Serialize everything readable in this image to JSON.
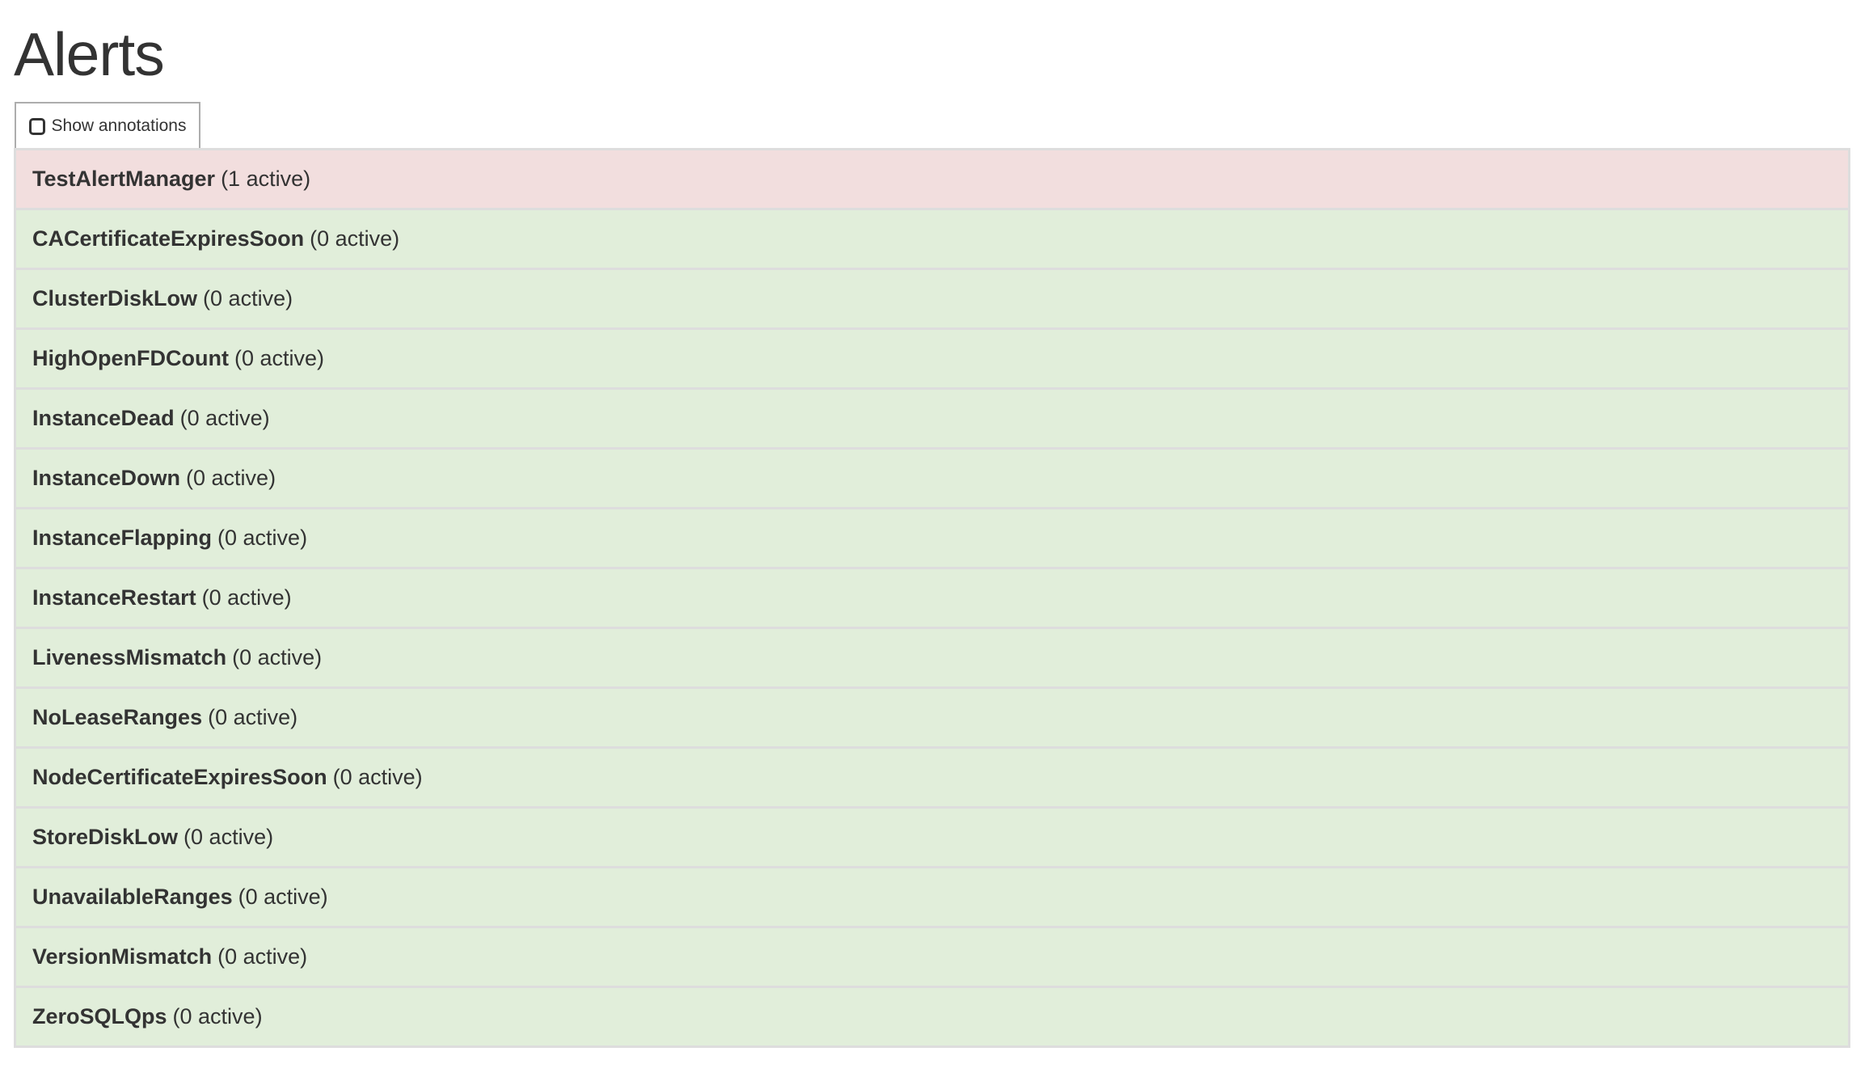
{
  "page": {
    "title": "Alerts"
  },
  "controls": {
    "show_annotations_label": "Show annotations",
    "show_annotations_checked": false
  },
  "colors": {
    "firing": "#f2dede",
    "inactive": "#e1eeda",
    "border": "#dddddd",
    "text": "#333333"
  },
  "alerts": [
    {
      "name": "TestAlertManager",
      "count": "(1 active)",
      "state": "firing"
    },
    {
      "name": "CACertificateExpiresSoon",
      "count": "(0 active)",
      "state": "inactive"
    },
    {
      "name": "ClusterDiskLow",
      "count": "(0 active)",
      "state": "inactive"
    },
    {
      "name": "HighOpenFDCount",
      "count": "(0 active)",
      "state": "inactive"
    },
    {
      "name": "InstanceDead",
      "count": "(0 active)",
      "state": "inactive"
    },
    {
      "name": "InstanceDown",
      "count": "(0 active)",
      "state": "inactive"
    },
    {
      "name": "InstanceFlapping",
      "count": "(0 active)",
      "state": "inactive"
    },
    {
      "name": "InstanceRestart",
      "count": "(0 active)",
      "state": "inactive"
    },
    {
      "name": "LivenessMismatch",
      "count": "(0 active)",
      "state": "inactive"
    },
    {
      "name": "NoLeaseRanges",
      "count": "(0 active)",
      "state": "inactive"
    },
    {
      "name": "NodeCertificateExpiresSoon",
      "count": "(0 active)",
      "state": "inactive"
    },
    {
      "name": "StoreDiskLow",
      "count": "(0 active)",
      "state": "inactive"
    },
    {
      "name": "UnavailableRanges",
      "count": "(0 active)",
      "state": "inactive"
    },
    {
      "name": "VersionMismatch",
      "count": "(0 active)",
      "state": "inactive"
    },
    {
      "name": "ZeroSQLQps",
      "count": "(0 active)",
      "state": "inactive"
    }
  ]
}
